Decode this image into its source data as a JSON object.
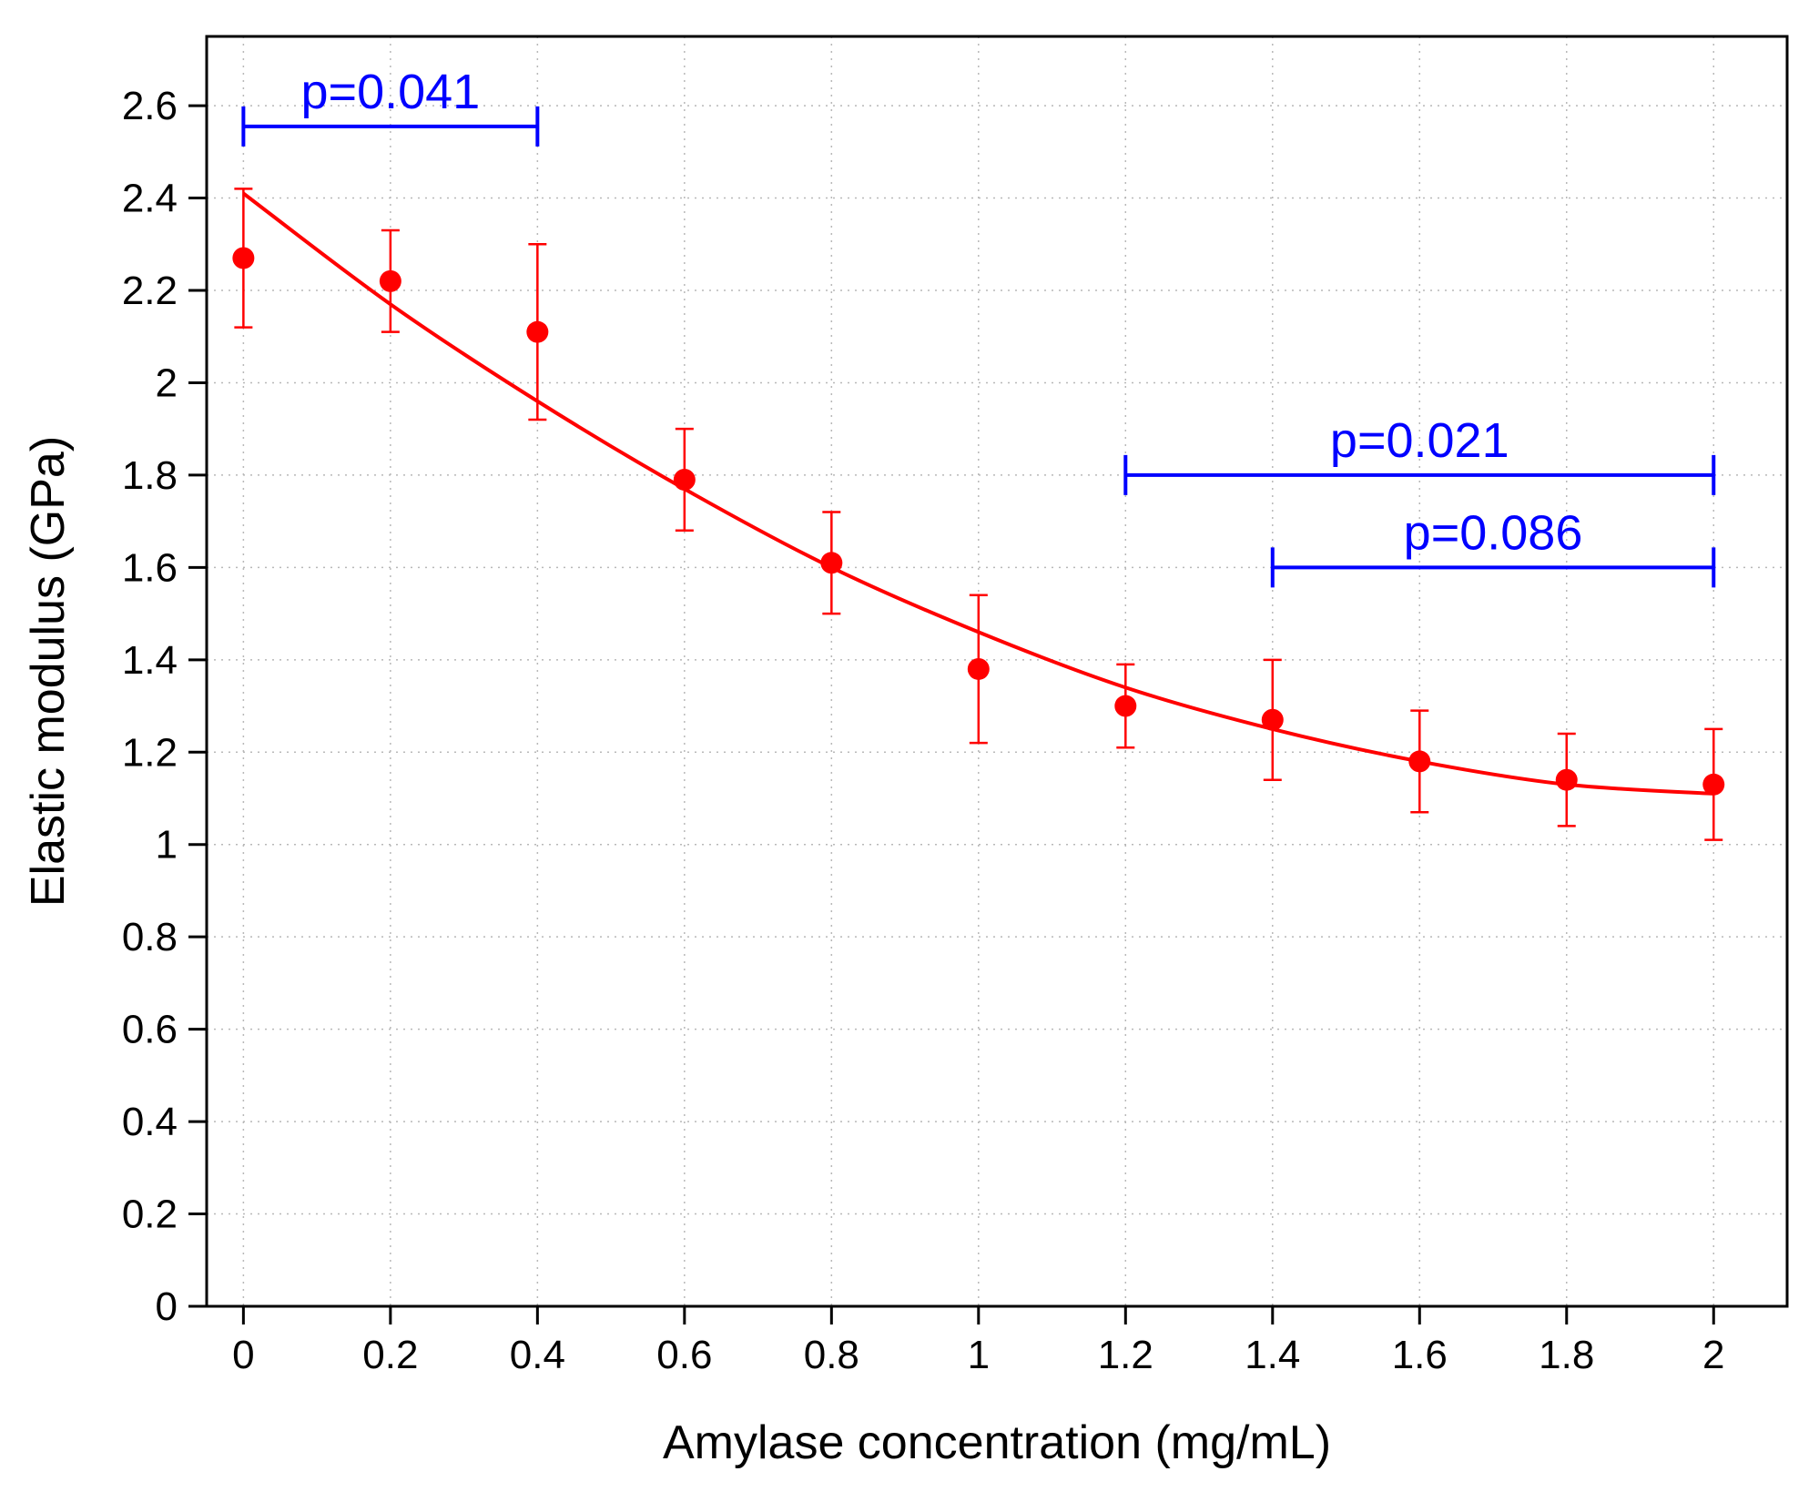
{
  "chart_data": {
    "type": "scatter",
    "xlabel": "Amylase concentration (mg/mL)",
    "ylabel": "Elastic modulus (GPa)",
    "xlim": [
      -0.05,
      2.1
    ],
    "ylim": [
      0,
      2.75
    ],
    "grid": true,
    "x_ticks": [
      0,
      0.2,
      0.4,
      0.6,
      0.8,
      1,
      1.2,
      1.4,
      1.6,
      1.8,
      2
    ],
    "x_tick_labels": [
      "0",
      "0.2",
      "0.4",
      "0.6",
      "0.8",
      "1",
      "1.2",
      "1.4",
      "1.6",
      "1.8",
      "2"
    ],
    "y_ticks": [
      0,
      0.2,
      0.4,
      0.6,
      0.8,
      1,
      1.2,
      1.4,
      1.6,
      1.8,
      2,
      2.2,
      2.4,
      2.6
    ],
    "y_tick_labels": [
      "0",
      "0.2",
      "0.4",
      "0.6",
      "0.8",
      "1",
      "1.2",
      "1.4",
      "1.6",
      "1.8",
      "2",
      "2.2",
      "2.4",
      "2.6"
    ],
    "series": [
      {
        "x": [
          0,
          0.2,
          0.4,
          0.6,
          0.8,
          1.0,
          1.2,
          1.4,
          1.6,
          1.8,
          2.0
        ],
        "y": [
          2.27,
          2.22,
          2.11,
          1.79,
          1.61,
          1.38,
          1.3,
          1.27,
          1.18,
          1.14,
          1.13
        ],
        "error_low": [
          2.12,
          2.11,
          1.92,
          1.68,
          1.5,
          1.22,
          1.21,
          1.14,
          1.07,
          1.04,
          1.01
        ],
        "error_high": [
          2.42,
          2.33,
          2.3,
          1.9,
          1.72,
          1.54,
          1.39,
          1.4,
          1.29,
          1.24,
          1.25
        ],
        "color": "#ff0000"
      }
    ],
    "fit_curve": {
      "x": [
        0,
        0.2,
        0.4,
        0.6,
        0.8,
        1.0,
        1.2,
        1.4,
        1.6,
        1.8,
        2.0
      ],
      "y": [
        2.41,
        2.17,
        1.96,
        1.77,
        1.6,
        1.46,
        1.34,
        1.25,
        1.18,
        1.13,
        1.11
      ],
      "color": "#ff0000"
    },
    "annotations": [
      {
        "text": "p=0.041",
        "x_start": 0,
        "x_end": 0.4,
        "y": 2.555,
        "color": "#0000ff"
      },
      {
        "text": "p=0.021",
        "x_start": 1.2,
        "x_end": 2.0,
        "y": 1.8,
        "color": "#0000ff"
      },
      {
        "text": "p=0.086",
        "x_start": 1.4,
        "x_end": 2.0,
        "y": 1.6,
        "color": "#0000ff"
      }
    ]
  }
}
